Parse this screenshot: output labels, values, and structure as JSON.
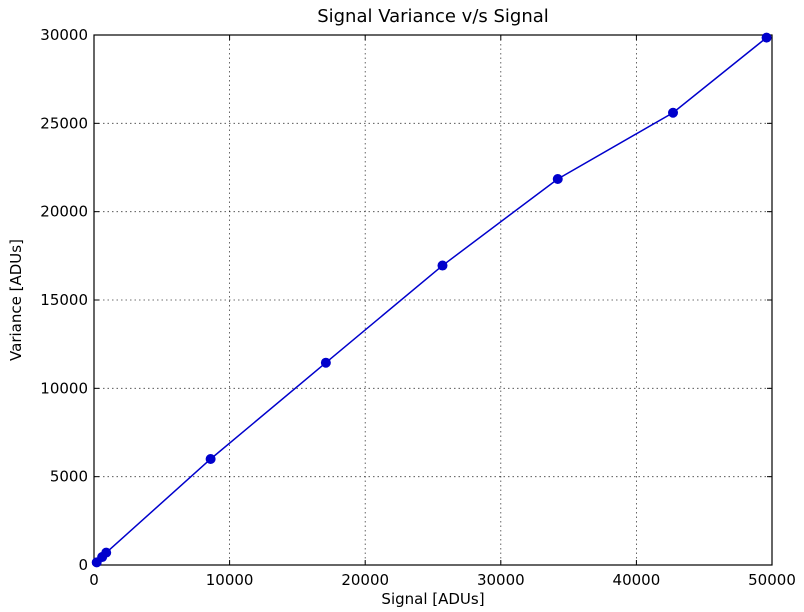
{
  "chart_data": {
    "type": "line",
    "title": "Signal Variance v/s Signal",
    "xlabel": "Signal [ADUs]",
    "ylabel": "Variance [ADUs]",
    "xlim": [
      0,
      50000
    ],
    "ylim": [
      0,
      30000
    ],
    "xticks": [
      0,
      10000,
      20000,
      30000,
      40000,
      50000
    ],
    "yticks": [
      0,
      5000,
      10000,
      15000,
      20000,
      25000,
      30000
    ],
    "xtick_labels": [
      "0",
      "10000",
      "20000",
      "30000",
      "40000",
      "50000"
    ],
    "ytick_labels": [
      "0",
      "5000",
      "10000",
      "15000",
      "20000",
      "25000",
      "30000"
    ],
    "grid": true,
    "series": [
      {
        "color": "#0000cc",
        "marker": "circle",
        "x": [
          200,
          600,
          900,
          8600,
          17100,
          25700,
          34200,
          42700,
          49600
        ],
        "y": [
          150,
          450,
          700,
          6000,
          11450,
          16950,
          21850,
          25600,
          29850
        ]
      }
    ]
  }
}
